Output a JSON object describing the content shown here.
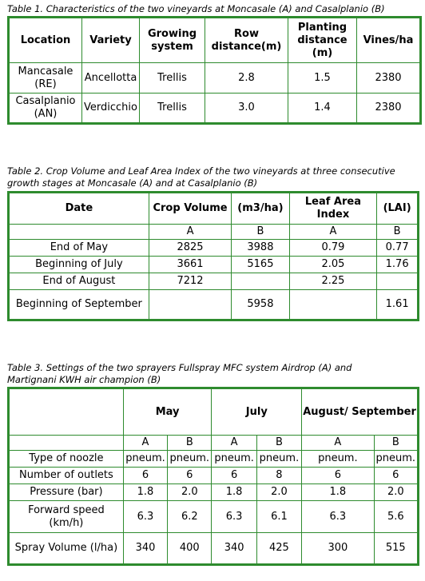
{
  "table1": {
    "caption": "Table 1. Characteristics of the two vineyards at Moncasale (A) and Casalplanio (B)",
    "headers": [
      "Location",
      "Variety",
      "Growing system",
      "Row distance(m)",
      "Planting distance (m)",
      "Vines/ha"
    ],
    "rows": [
      [
        "Mancasale (RE)",
        "Ancellotta",
        "Trellis",
        "2.8",
        "1.5",
        "2380"
      ],
      [
        "Casalplanio (AN)",
        "Verdicchio",
        "Trellis",
        "3.0",
        "1.4",
        "2380"
      ]
    ]
  },
  "table2": {
    "caption": "Table 2. Crop Volume and Leaf Area Index of the two vineyards at three consecutive growth stages at Moncasale (A) and at Casalplanio (B)",
    "headers": [
      "Date",
      "Crop Volume",
      "(m3/ha)",
      "Leaf Area Index",
      "(LAI)"
    ],
    "subheaders": [
      "A",
      "B",
      "A",
      "B"
    ],
    "rows": [
      [
        "End of May",
        "2825",
        "3988",
        "0.79",
        "0.77"
      ],
      [
        "Beginning of July",
        "3661",
        "5165",
        "2.05",
        "1.76"
      ],
      [
        "End of August",
        "7212",
        "",
        "2.25",
        ""
      ],
      [
        "Beginning of September",
        "",
        "5958",
        "",
        "1.61"
      ]
    ]
  },
  "table3": {
    "caption": "Table 3. Settings of the two sprayers Fullspray MFC system Airdrop (A) and Martignani KWH air champion (B)",
    "headers": [
      "May",
      "July",
      "August/ September"
    ],
    "subheaders": [
      "A",
      "B",
      "A",
      "B",
      "A",
      "B"
    ],
    "rows": [
      [
        "Type of noozle",
        "pneum.",
        "pneum.",
        "pneum.",
        "pneum.",
        "pneum.",
        "pneum."
      ],
      [
        "Number of outlets",
        "6",
        "6",
        "6",
        "8",
        "6",
        "6"
      ],
      [
        "Pressure (bar)",
        "1.8",
        "2.0",
        "1.8",
        "2.0",
        "1.8",
        "2.0"
      ],
      [
        "Forward speed (km/h)",
        "6.3",
        "6.2",
        "6.3",
        "6.1",
        "6.3",
        "5.6"
      ],
      [
        "Spray Volume (l/ha)",
        "340",
        "400",
        "340",
        "425",
        "300",
        "515"
      ]
    ]
  }
}
